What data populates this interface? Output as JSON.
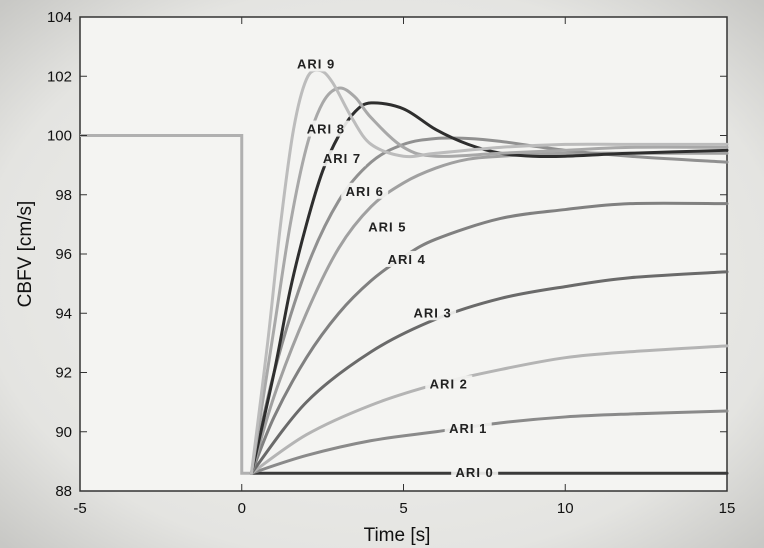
{
  "chart_data": {
    "type": "line",
    "xlabel": "Time [s]",
    "ylabel": "CBFV [cm/s]",
    "xlim": [
      -5,
      15
    ],
    "ylim": [
      88,
      104
    ],
    "xticks": [
      "-5",
      "0",
      "5",
      "10",
      "15"
    ],
    "yticks": [
      "88",
      "90",
      "92",
      "94",
      "96",
      "98",
      "100",
      "102",
      "104"
    ],
    "grid": false,
    "baseline": {
      "x": [
        -5,
        0,
        0,
        0.3
      ],
      "y": [
        100,
        100,
        88.6,
        88.6
      ],
      "color": "#b0b0b0"
    },
    "series": [
      {
        "name": "ARI 0",
        "color": "#3a3a3a",
        "label_at": [
          7.2,
          88.6
        ],
        "x": [
          0.3,
          15
        ],
        "y": [
          88.6,
          88.6
        ]
      },
      {
        "name": "ARI 1",
        "color": "#8a8a8a",
        "label_at": [
          7.0,
          90.1
        ],
        "x": [
          0.3,
          2,
          4,
          6,
          8,
          10,
          12,
          15
        ],
        "y": [
          88.6,
          89.2,
          89.7,
          90.0,
          90.3,
          90.5,
          90.6,
          90.7
        ]
      },
      {
        "name": "ARI 2",
        "color": "#b4b4b4",
        "label_at": [
          6.4,
          91.6
        ],
        "x": [
          0.3,
          2,
          4,
          6,
          8,
          10,
          12,
          15
        ],
        "y": [
          88.6,
          89.9,
          90.9,
          91.6,
          92.1,
          92.5,
          92.7,
          92.9
        ]
      },
      {
        "name": "ARI 3",
        "color": "#6a6a6a",
        "label_at": [
          5.9,
          94.0
        ],
        "x": [
          0.3,
          2,
          4,
          6,
          8,
          10,
          12,
          15
        ],
        "y": [
          88.6,
          91.0,
          92.7,
          93.8,
          94.5,
          94.9,
          95.2,
          95.4
        ]
      },
      {
        "name": "ARI 4",
        "color": "#808080",
        "label_at": [
          5.1,
          95.8
        ],
        "x": [
          0.3,
          1,
          2,
          3,
          4,
          5,
          6,
          8,
          10,
          12,
          15
        ],
        "y": [
          88.6,
          90.5,
          92.5,
          94.0,
          95.1,
          95.9,
          96.5,
          97.2,
          97.5,
          97.7,
          97.7
        ]
      },
      {
        "name": "ARI 5",
        "color": "#a0a0a0",
        "label_at": [
          4.5,
          96.9
        ],
        "x": [
          0.3,
          1,
          2,
          3,
          4,
          5,
          6,
          7,
          8,
          10,
          12,
          15
        ],
        "y": [
          88.6,
          91.2,
          94.0,
          96.2,
          97.6,
          98.4,
          98.9,
          99.2,
          99.3,
          99.4,
          99.4,
          99.4
        ]
      },
      {
        "name": "ARI 6",
        "color": "#909090",
        "label_at": [
          3.8,
          98.1
        ],
        "x": [
          0.3,
          1,
          2,
          3,
          4,
          5,
          6,
          7,
          8,
          10,
          12,
          15
        ],
        "y": [
          88.6,
          92.0,
          95.5,
          97.8,
          99.1,
          99.7,
          99.9,
          99.9,
          99.8,
          99.5,
          99.3,
          99.1
        ]
      },
      {
        "name": "ARI 7",
        "color": "#2e2e2e",
        "label_at": [
          3.1,
          99.2
        ],
        "x": [
          0.3,
          1,
          1.5,
          2,
          2.5,
          3,
          3.5,
          4,
          5,
          6,
          7,
          8,
          9,
          10,
          12,
          15
        ],
        "y": [
          88.6,
          92.0,
          94.8,
          97.0,
          98.8,
          100.0,
          100.8,
          101.1,
          100.9,
          100.2,
          99.7,
          99.4,
          99.3,
          99.3,
          99.4,
          99.5
        ]
      },
      {
        "name": "ARI 8",
        "color": "#a8a8a8",
        "label_at": [
          2.6,
          100.2
        ],
        "x": [
          0.3,
          1,
          1.5,
          2,
          2.5,
          3,
          3.5,
          4,
          5,
          6,
          8,
          10,
          12,
          15
        ],
        "y": [
          88.6,
          93.5,
          97.0,
          99.6,
          101.1,
          101.6,
          101.3,
          100.6,
          99.6,
          99.3,
          99.4,
          99.5,
          99.6,
          99.6
        ]
      },
      {
        "name": "ARI 9",
        "color": "#bcbcbc",
        "label_at": [
          2.3,
          102.4
        ],
        "x": [
          0.3,
          0.8,
          1.2,
          1.6,
          2.0,
          2.4,
          2.8,
          3.4,
          4,
          5,
          6,
          8,
          10,
          12,
          15
        ],
        "y": [
          88.6,
          93.0,
          97.0,
          100.2,
          101.9,
          102.2,
          101.8,
          100.6,
          99.7,
          99.3,
          99.4,
          99.6,
          99.7,
          99.7,
          99.7
        ]
      }
    ]
  }
}
